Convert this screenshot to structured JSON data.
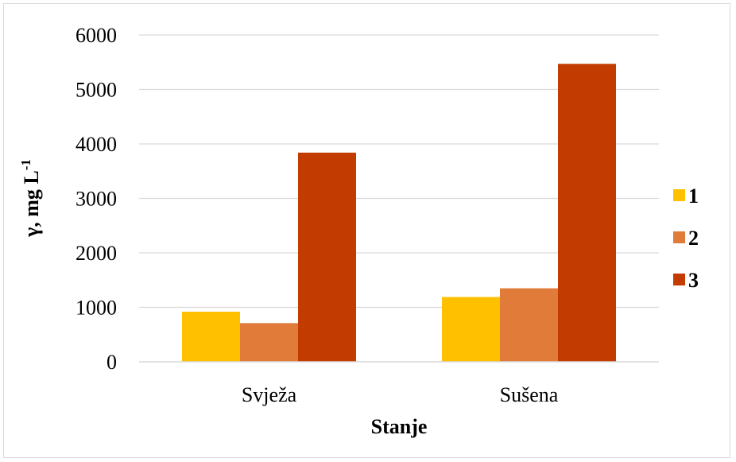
{
  "chart_data": {
    "type": "bar",
    "categories": [
      "Svježa",
      "Sušena"
    ],
    "series": [
      {
        "name": "1",
        "values": [
          920,
          1190
        ],
        "color": "#ffc000"
      },
      {
        "name": "2",
        "values": [
          710,
          1350
        ],
        "color": "#e07b39"
      },
      {
        "name": "3",
        "values": [
          3840,
          5470
        ],
        "color": "#c23b00"
      }
    ],
    "xlabel": "Stanje",
    "ylabel": "γ, mg L",
    "ylabel_superscript": "-1",
    "ylim": [
      0,
      6000
    ],
    "yticks": [
      0,
      1000,
      2000,
      3000,
      4000,
      5000,
      6000
    ],
    "grid": true,
    "legend_position": "right",
    "gridline_color": "#d9d9d9"
  }
}
